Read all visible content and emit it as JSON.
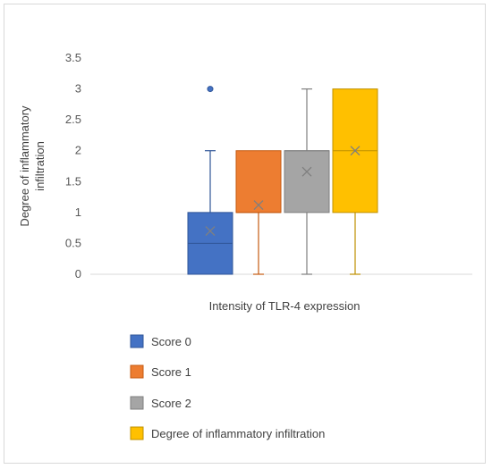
{
  "chart_data": {
    "type": "boxplot",
    "title": "",
    "xlabel": "Intensity of TLR-4 expression",
    "ylabel": "Degree of inflammatory infiltration",
    "ylim": [
      0,
      3.5
    ],
    "yticks": [
      "0",
      "0.5",
      "1",
      "1.5",
      "2",
      "2.5",
      "3",
      "3.5"
    ],
    "grid": false,
    "legend_position": "bottom",
    "series": [
      {
        "name": "Score 0",
        "color": "#4472c4",
        "stroke": "#2f5597",
        "min": 0,
        "q1": 0,
        "median": 0.5,
        "q3": 1,
        "max": 2,
        "mean": 0.7,
        "outliers": [
          3
        ]
      },
      {
        "name": "Score 1",
        "color": "#ed7d31",
        "stroke": "#c55a11",
        "min": 0,
        "q1": 1,
        "median": 1,
        "q3": 2,
        "max": 2,
        "mean": 1.12,
        "outliers": []
      },
      {
        "name": "Score 2",
        "color": "#a5a5a5",
        "stroke": "#7f7f7f",
        "min": 0,
        "q1": 1,
        "median": 2,
        "q3": 2,
        "max": 3,
        "mean": 1.66,
        "outliers": []
      },
      {
        "name": "Degree of inflammatory infiltration",
        "color": "#ffc000",
        "stroke": "#bf9000",
        "min": 0,
        "q1": 1,
        "median": 2,
        "q3": 3,
        "max": 3,
        "mean": 2,
        "outliers": []
      }
    ]
  }
}
